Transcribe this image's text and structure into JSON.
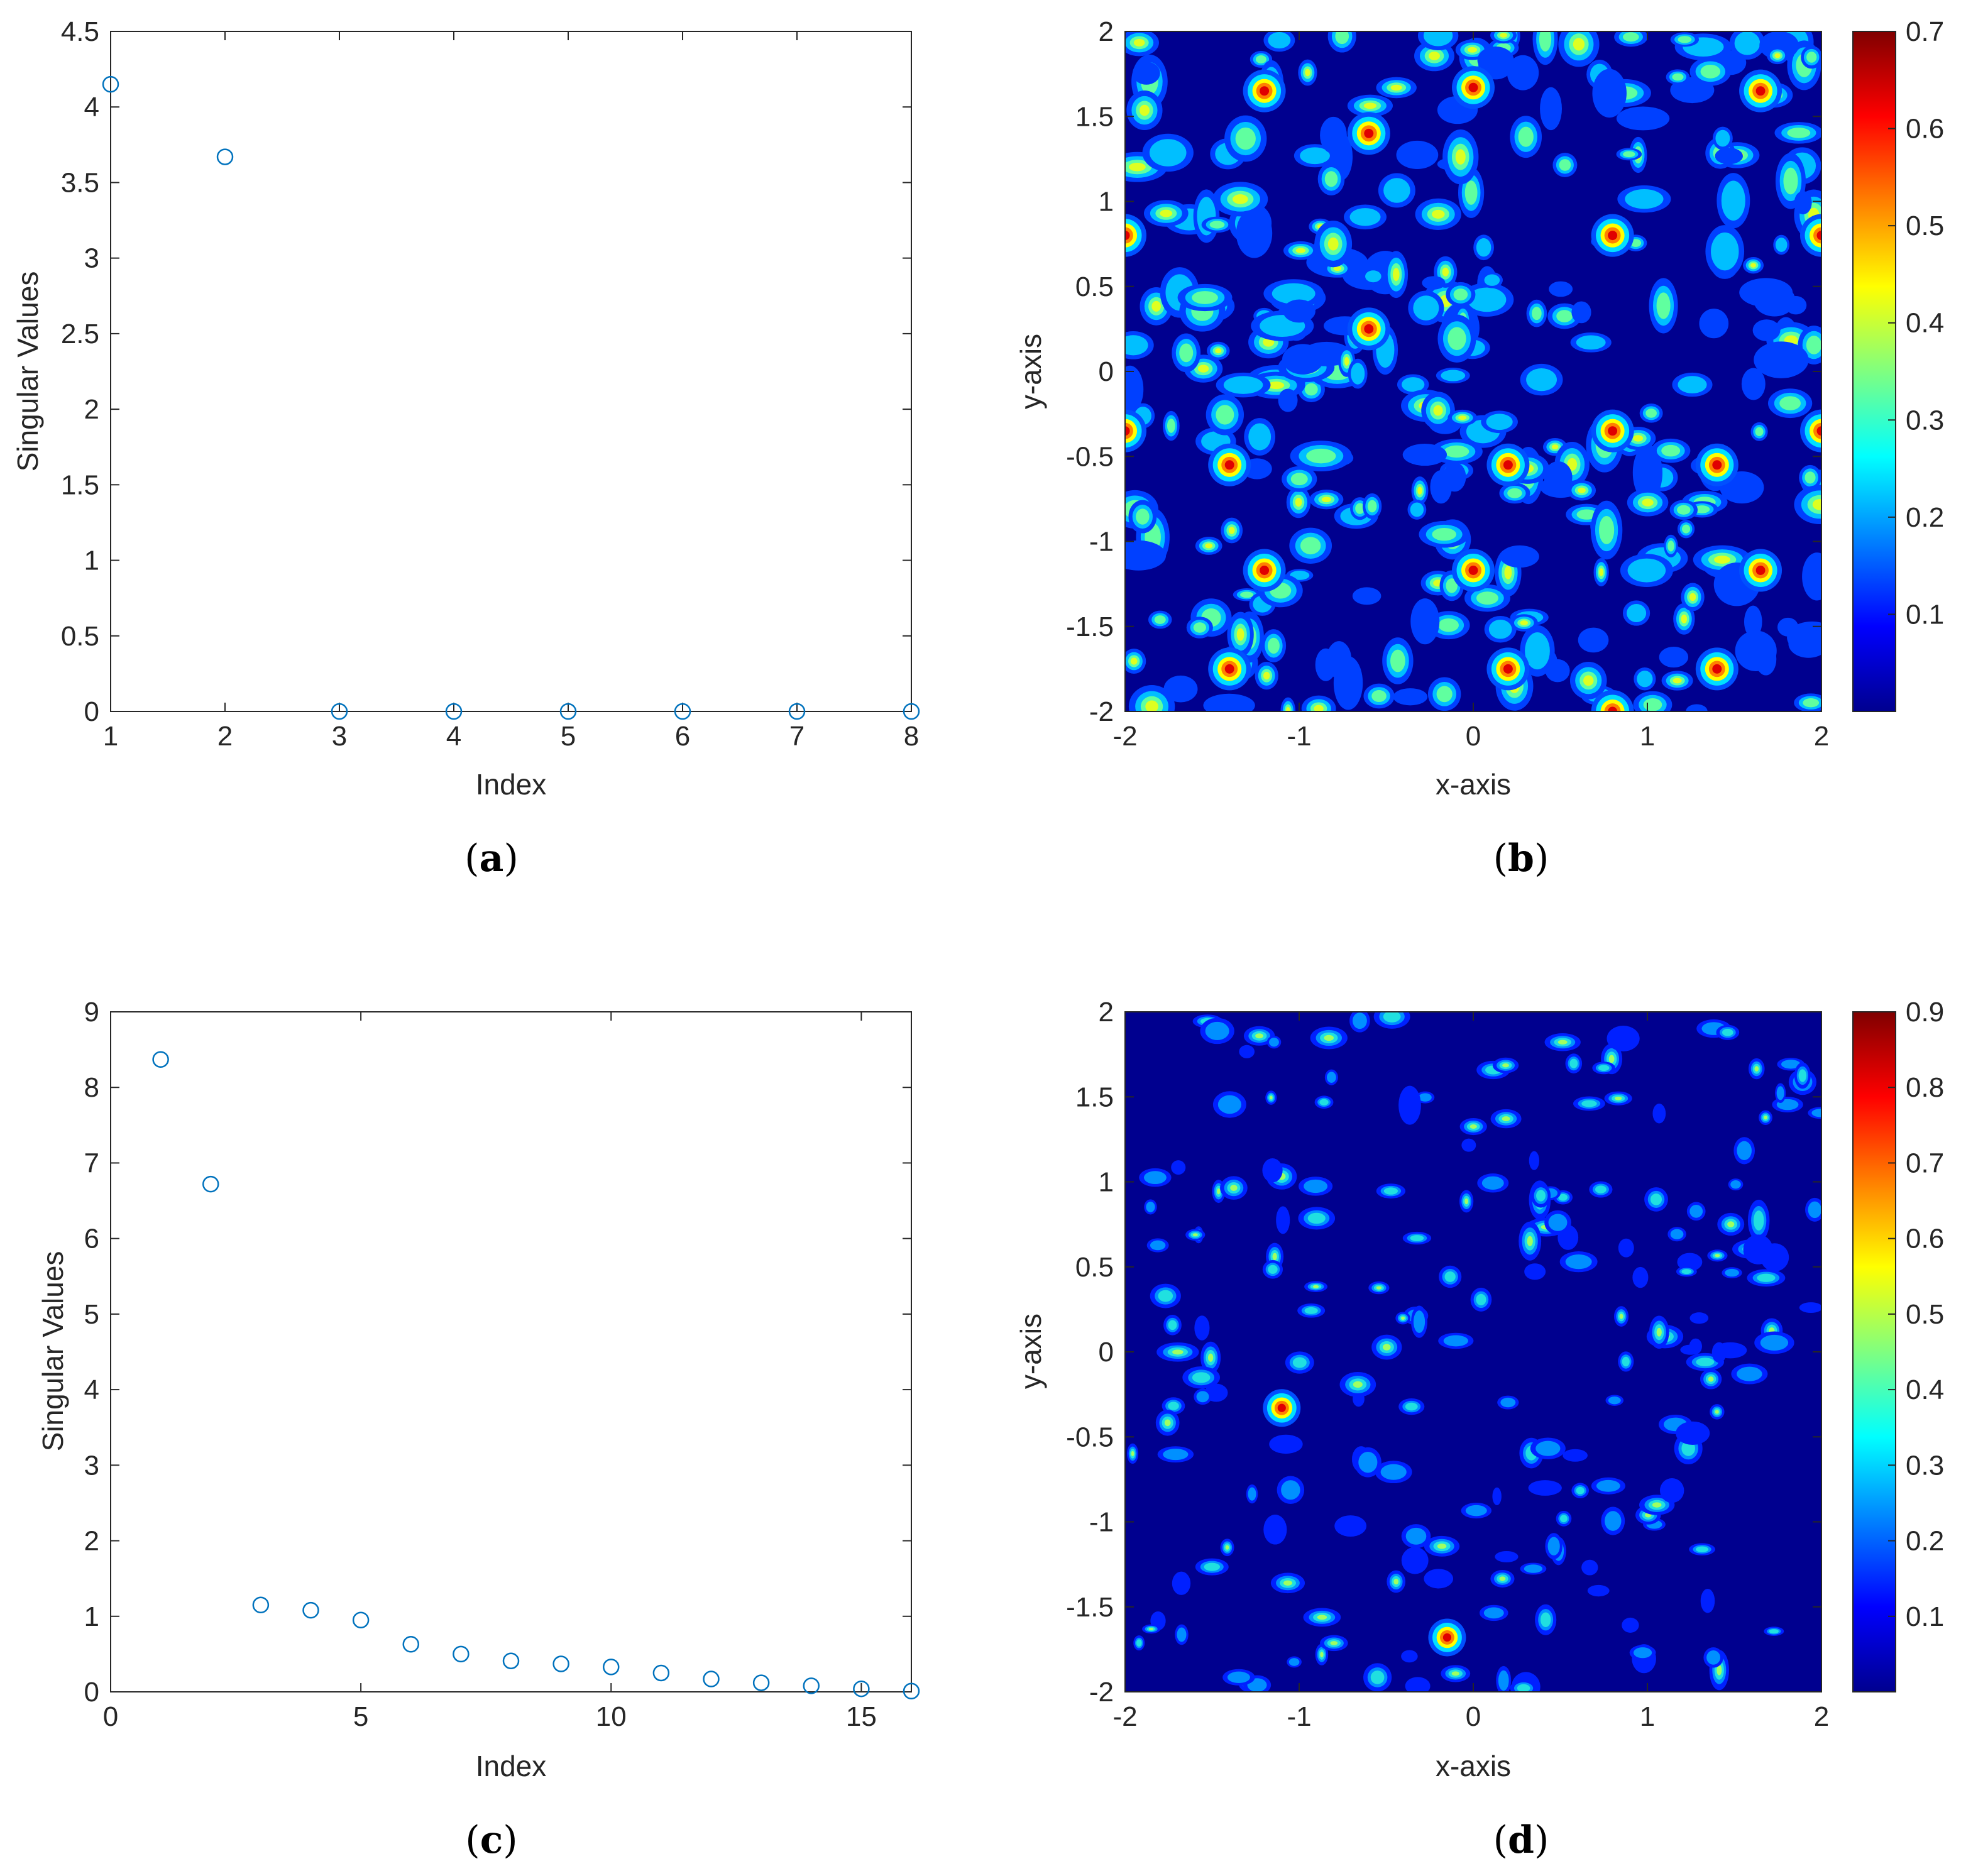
{
  "panels": [
    {
      "id": "a",
      "label_prefix": "(",
      "label_letter": "a",
      "label_suffix": ")"
    },
    {
      "id": "b",
      "label_prefix": "(",
      "label_letter": "b",
      "label_suffix": ")"
    },
    {
      "id": "c",
      "label_prefix": "(",
      "label_letter": "c",
      "label_suffix": ")"
    },
    {
      "id": "d",
      "label_prefix": "(",
      "label_letter": "d",
      "label_suffix": ")"
    }
  ],
  "chart_data": [
    {
      "panel": "a",
      "type": "scatter",
      "title": "",
      "xlabel": "Index",
      "ylabel": "Singular Values",
      "xlim": [
        1,
        8
      ],
      "ylim": [
        0,
        4.5
      ],
      "xticks": [
        1,
        2,
        3,
        4,
        5,
        6,
        7,
        8
      ],
      "yticks": [
        0,
        0.5,
        1,
        1.5,
        2,
        2.5,
        3,
        3.5,
        4,
        4.5
      ],
      "marker": "open-circle",
      "color": "#0072BD",
      "x": [
        1,
        2,
        3,
        4,
        5,
        6,
        7,
        8
      ],
      "y": [
        4.15,
        3.67,
        0.0,
        0.0,
        0.0,
        0.0,
        0.0,
        0.0
      ],
      "grid": false
    },
    {
      "panel": "b",
      "type": "heatmap",
      "subtype": "filled-contour",
      "title": "",
      "xlabel": "x-axis",
      "ylabel": "y-axis",
      "xlim": [
        -2,
        2
      ],
      "ylim": [
        -2,
        2
      ],
      "xticks": [
        -2,
        -1,
        0,
        1,
        2
      ],
      "yticks": [
        -2,
        -1.5,
        -1,
        -0.5,
        0,
        0.5,
        1,
        1.5,
        2
      ],
      "colormap": "jet",
      "colorbar_range": [
        0,
        0.7
      ],
      "colorbar_ticks": [
        "0.1",
        "0.2",
        "0.3",
        "0.4",
        "0.5",
        "0.6",
        "0.7"
      ],
      "peaks": [
        [
          -1.2,
          1.65
        ],
        [
          0.0,
          1.67
        ],
        [
          -0.6,
          1.4
        ],
        [
          1.65,
          1.65
        ],
        [
          -2.0,
          0.8
        ],
        [
          0.8,
          0.8
        ],
        [
          2.0,
          0.8
        ],
        [
          -0.6,
          0.25
        ],
        [
          -1.4,
          -0.55
        ],
        [
          0.2,
          -0.55
        ],
        [
          1.4,
          -0.55
        ],
        [
          -2.0,
          -0.35
        ],
        [
          0.8,
          -0.35
        ],
        [
          2.0,
          -0.35
        ],
        [
          -1.2,
          -1.17
        ],
        [
          0.0,
          -1.17
        ],
        [
          1.65,
          -1.17
        ],
        [
          -1.4,
          -1.75
        ],
        [
          0.2,
          -1.75
        ],
        [
          1.4,
          -1.75
        ],
        [
          0.8,
          -2.0
        ]
      ],
      "grid": false
    },
    {
      "panel": "c",
      "type": "scatter",
      "title": "",
      "xlabel": "Index",
      "ylabel": "Singular Values",
      "xlim": [
        0,
        16
      ],
      "ylim": [
        0,
        9
      ],
      "xticks": [
        0,
        5,
        10,
        15
      ],
      "yticks": [
        0,
        1,
        2,
        3,
        4,
        5,
        6,
        7,
        8,
        9
      ],
      "marker": "open-circle",
      "color": "#0072BD",
      "x": [
        1,
        2,
        3,
        4,
        5,
        6,
        7,
        8,
        9,
        10,
        11,
        12,
        13,
        14,
        15,
        16
      ],
      "y": [
        8.37,
        6.72,
        1.15,
        1.08,
        0.95,
        0.63,
        0.5,
        0.41,
        0.37,
        0.33,
        0.25,
        0.17,
        0.12,
        0.08,
        0.04,
        0.01
      ],
      "grid": false
    },
    {
      "panel": "d",
      "type": "heatmap",
      "subtype": "filled-contour",
      "title": "",
      "xlabel": "x-axis",
      "ylabel": "y-axis",
      "xlim": [
        -2,
        2
      ],
      "ylim": [
        -2,
        2
      ],
      "xticks": [
        -2,
        -1,
        0,
        1,
        2
      ],
      "yticks": [
        -2,
        -1.5,
        -1,
        -0.5,
        0,
        0.5,
        1,
        1.5,
        2
      ],
      "colormap": "jet",
      "colorbar_range": [
        0,
        0.9
      ],
      "colorbar_ticks": [
        "0.1",
        "0.2",
        "0.3",
        "0.4",
        "0.5",
        "0.6",
        "0.7",
        "0.8",
        "0.9"
      ],
      "peaks": [
        [
          -1.1,
          -0.33
        ],
        [
          -0.15,
          -1.68
        ]
      ],
      "grid": false
    }
  ]
}
